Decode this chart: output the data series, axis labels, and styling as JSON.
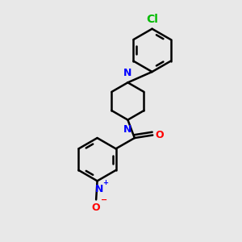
{
  "bg_color": "#e8e8e8",
  "bond_color": "#000000",
  "bond_width": 1.8,
  "N_color": "#0000ff",
  "O_color": "#ff0000",
  "Cl_color": "#00bb00",
  "font_size": 9,
  "fig_w": 3.0,
  "fig_h": 3.0,
  "dpi": 100,
  "xlim": [
    -0.5,
    2.1
  ],
  "ylim": [
    -1.0,
    3.2
  ]
}
